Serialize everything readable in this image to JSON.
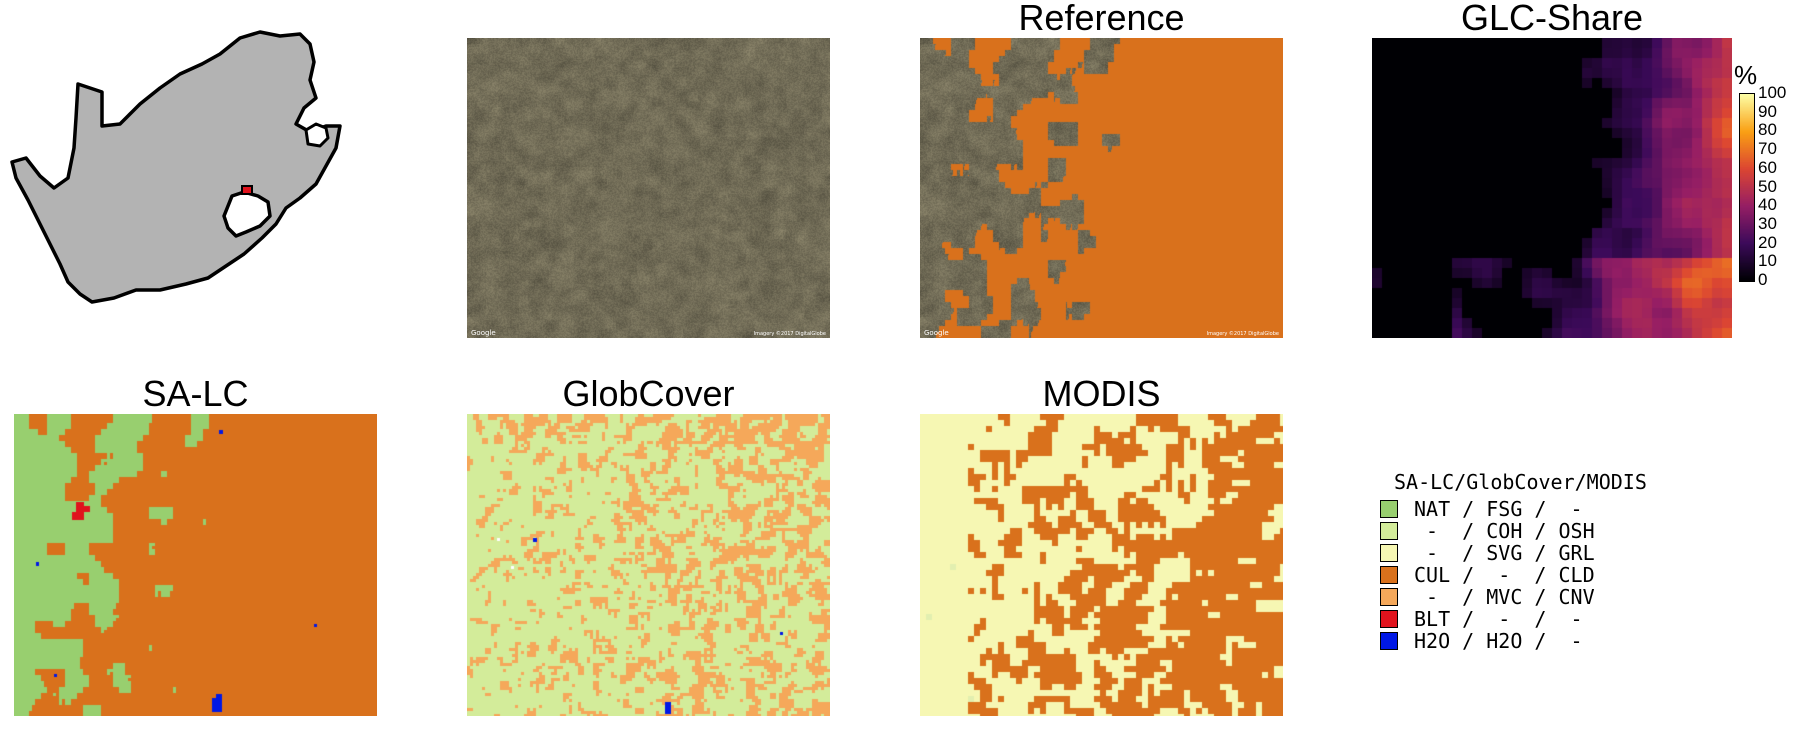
{
  "titles": {
    "reference": "Reference",
    "glc_share": "GLC-Share",
    "sa_lc": "SA-LC",
    "globcover": "GlobCover",
    "modis": "MODIS"
  },
  "imagery_credit_left": "Google",
  "imagery_credit_right": "Imagery ©2017 DigitalGlobe",
  "colorbar": {
    "unit": "%",
    "ticks": [
      "100",
      "90",
      "80",
      "70",
      "60",
      "50",
      "40",
      "30",
      "20",
      "10",
      "0"
    ]
  },
  "legend": {
    "heading": "SA-LC/GlobCover/MODIS",
    "items": [
      {
        "color": "#98cf6f",
        "text": "NAT / FSG /  -"
      },
      {
        "color": "#d3ec9a",
        "text": " -  / COH / OSH"
      },
      {
        "color": "#f6f7b3",
        "text": " -  / SVG / GRL"
      },
      {
        "color": "#d9711c",
        "text": "CUL /  -  / CLD"
      },
      {
        "color": "#f5a85a",
        "text": " -  / MVC / CNV"
      },
      {
        "color": "#e0131d",
        "text": "BLT /  -  /  -"
      },
      {
        "color": "#0018e6",
        "text": "H2O / H2O /  -"
      }
    ]
  },
  "colors": {
    "map_fill": "#b3b3b3",
    "study_area_marker": "#e0131d",
    "satellite_base": "#6b6652",
    "cultivation_overlay": "#d9711c",
    "nat": "#98cf6f",
    "coh": "#d3ec9a",
    "svg_grl": "#f6f7b3",
    "cul": "#d9711c",
    "mvc": "#f5a85a",
    "blt": "#e0131d",
    "h2o": "#0018e6"
  }
}
